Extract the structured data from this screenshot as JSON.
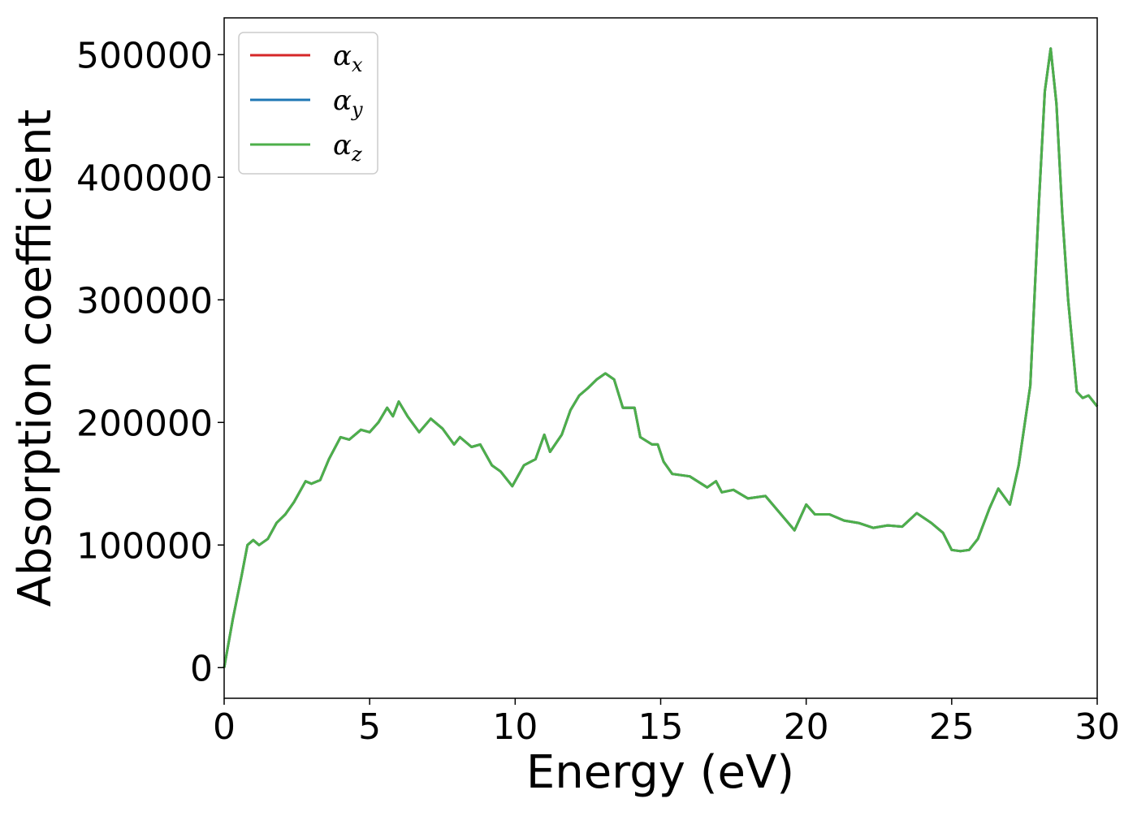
{
  "chart_data": {
    "type": "line",
    "title": "",
    "xlabel": "Energy (eV)",
    "ylabel": "Absorption coefficient",
    "xlim": [
      0,
      30
    ],
    "ylim": [
      -25000,
      530000
    ],
    "grid": false,
    "legend_placement": "top-left",
    "x_ticks": [
      0,
      5,
      10,
      15,
      20,
      25,
      30
    ],
    "x_tick_labels": [
      "0",
      "5",
      "10",
      "15",
      "20",
      "25",
      "30"
    ],
    "y_ticks": [
      0,
      100000,
      200000,
      300000,
      400000,
      500000
    ],
    "y_tick_labels": [
      "0",
      "100000",
      "200000",
      "300000",
      "400000",
      "500000"
    ],
    "legend": [
      {
        "main": "α",
        "sub": "x",
        "color": "#d62728"
      },
      {
        "main": "α",
        "sub": "y",
        "color": "#1f77b4"
      },
      {
        "main": "α",
        "sub": "z",
        "color": "#4daf4a"
      }
    ],
    "x": [
      0,
      0.3,
      0.6,
      0.8,
      1.0,
      1.2,
      1.5,
      1.8,
      2.1,
      2.4,
      2.8,
      3.0,
      3.3,
      3.6,
      4.0,
      4.3,
      4.7,
      5.0,
      5.3,
      5.6,
      5.8,
      6.0,
      6.3,
      6.7,
      7.1,
      7.5,
      7.9,
      8.1,
      8.5,
      8.8,
      9.2,
      9.5,
      9.9,
      10.3,
      10.7,
      11.0,
      11.2,
      11.6,
      11.9,
      12.2,
      12.5,
      12.8,
      13.1,
      13.4,
      13.7,
      14.1,
      14.3,
      14.7,
      14.9,
      15.1,
      15.4,
      16.0,
      16.6,
      16.9,
      17.1,
      17.5,
      18.0,
      18.6,
      19.1,
      19.6,
      20.0,
      20.3,
      20.8,
      21.3,
      21.8,
      22.3,
      22.8,
      23.3,
      23.8,
      24.3,
      24.7,
      25.0,
      25.3,
      25.6,
      25.9,
      26.3,
      26.6,
      27.0,
      27.3,
      27.7,
      28.0,
      28.2,
      28.4,
      28.6,
      28.8,
      29.0,
      29.3,
      29.5,
      29.7,
      30.0
    ],
    "series": [
      {
        "name": "α_x",
        "color": "#d62728",
        "values": [
          0,
          40000,
          75000,
          100000,
          104000,
          100000,
          105000,
          118000,
          125000,
          135000,
          152000,
          150000,
          153000,
          170000,
          188000,
          186000,
          194000,
          192000,
          200000,
          212000,
          205000,
          217000,
          205000,
          192000,
          203000,
          195000,
          182000,
          188000,
          180000,
          182000,
          165000,
          160000,
          148000,
          165000,
          170000,
          190000,
          176000,
          190000,
          210000,
          222000,
          228000,
          235000,
          240000,
          235000,
          212000,
          212000,
          188000,
          182000,
          182000,
          168000,
          158000,
          156000,
          147000,
          152000,
          143000,
          145000,
          138000,
          140000,
          126000,
          112000,
          133000,
          125000,
          125000,
          120000,
          118000,
          114000,
          116000,
          115000,
          126000,
          118000,
          110000,
          96000,
          95000,
          96000,
          105000,
          130000,
          146000,
          133000,
          165000,
          230000,
          380000,
          470000,
          505000,
          460000,
          370000,
          300000,
          225000,
          220000,
          222000,
          213000
        ]
      },
      {
        "name": "α_y",
        "color": "#1f77b4",
        "values": [
          0,
          40000,
          75000,
          100000,
          104000,
          100000,
          105000,
          118000,
          125000,
          135000,
          152000,
          150000,
          153000,
          170000,
          188000,
          186000,
          194000,
          192000,
          200000,
          212000,
          205000,
          217000,
          205000,
          192000,
          203000,
          195000,
          182000,
          188000,
          180000,
          182000,
          165000,
          160000,
          148000,
          165000,
          170000,
          190000,
          176000,
          190000,
          210000,
          222000,
          228000,
          235000,
          240000,
          235000,
          212000,
          212000,
          188000,
          182000,
          182000,
          168000,
          158000,
          156000,
          147000,
          152000,
          143000,
          145000,
          138000,
          140000,
          126000,
          112000,
          133000,
          125000,
          125000,
          120000,
          118000,
          114000,
          116000,
          115000,
          126000,
          118000,
          110000,
          96000,
          95000,
          96000,
          105000,
          130000,
          146000,
          133000,
          165000,
          230000,
          380000,
          470000,
          505000,
          460000,
          370000,
          300000,
          225000,
          220000,
          222000,
          213000
        ]
      },
      {
        "name": "α_z",
        "color": "#4daf4a",
        "values": [
          0,
          40000,
          75000,
          100000,
          104000,
          100000,
          105000,
          118000,
          125000,
          135000,
          152000,
          150000,
          153000,
          170000,
          188000,
          186000,
          194000,
          192000,
          200000,
          212000,
          205000,
          217000,
          205000,
          192000,
          203000,
          195000,
          182000,
          188000,
          180000,
          182000,
          165000,
          160000,
          148000,
          165000,
          170000,
          190000,
          176000,
          190000,
          210000,
          222000,
          228000,
          235000,
          240000,
          235000,
          212000,
          212000,
          188000,
          182000,
          182000,
          168000,
          158000,
          156000,
          147000,
          152000,
          143000,
          145000,
          138000,
          140000,
          126000,
          112000,
          133000,
          125000,
          125000,
          120000,
          118000,
          114000,
          116000,
          115000,
          126000,
          118000,
          110000,
          96000,
          95000,
          96000,
          105000,
          130000,
          146000,
          133000,
          165000,
          230000,
          380000,
          470000,
          505000,
          460000,
          370000,
          300000,
          225000,
          220000,
          222000,
          213000
        ]
      }
    ]
  }
}
